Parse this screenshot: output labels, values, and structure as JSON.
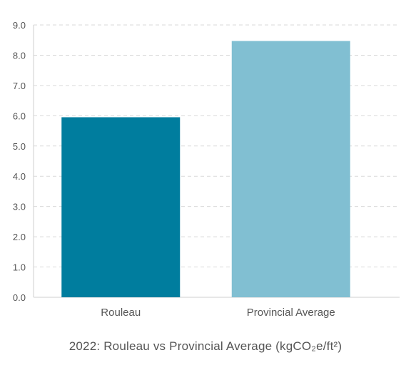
{
  "chart_data": {
    "type": "bar",
    "categories": [
      "Rouleau",
      "Provincial Average"
    ],
    "values": [
      5.95,
      8.47
    ],
    "colors": [
      "#007d9e",
      "#81bfd2"
    ],
    "ylim": [
      0,
      9
    ],
    "yticks": [
      "0.0",
      "1.0",
      "2.0",
      "3.0",
      "4.0",
      "5.0",
      "6.0",
      "7.0",
      "8.0",
      "9.0"
    ],
    "grid": true,
    "grid_style": "dashed",
    "caption": "2022: Rouleau vs Provincial Average (kgCO₂e/ft²)"
  }
}
